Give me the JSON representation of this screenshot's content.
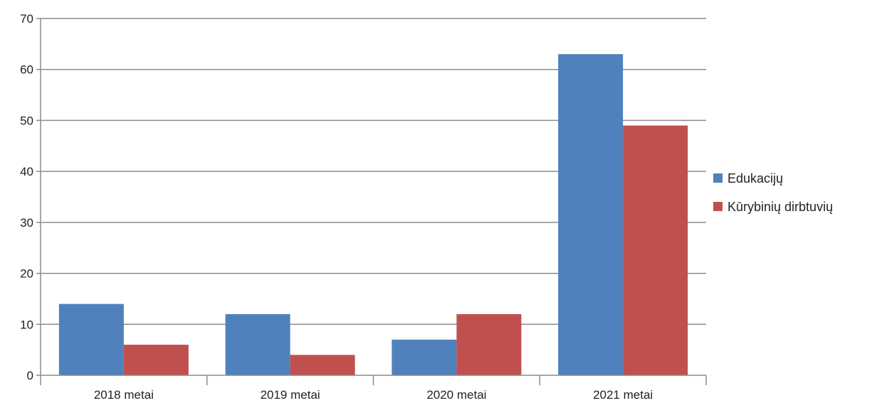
{
  "chart_data": {
    "type": "bar",
    "title": "",
    "xlabel": "",
    "ylabel": "",
    "categories": [
      "2018 metai",
      "2019 metai",
      "2020 metai",
      "2021 metai"
    ],
    "series": [
      {
        "name": "Edukacijų",
        "values": [
          14,
          12,
          7,
          63
        ],
        "color": "#4F81BD"
      },
      {
        "name": "Kūrybinių dirbtuvių",
        "values": [
          6,
          4,
          12,
          49
        ],
        "color": "#C0504D"
      }
    ],
    "ylim": [
      0,
      70
    ],
    "yticks": [
      0,
      10,
      20,
      30,
      40,
      50,
      60,
      70
    ],
    "grid": true,
    "legend_position": "right"
  }
}
